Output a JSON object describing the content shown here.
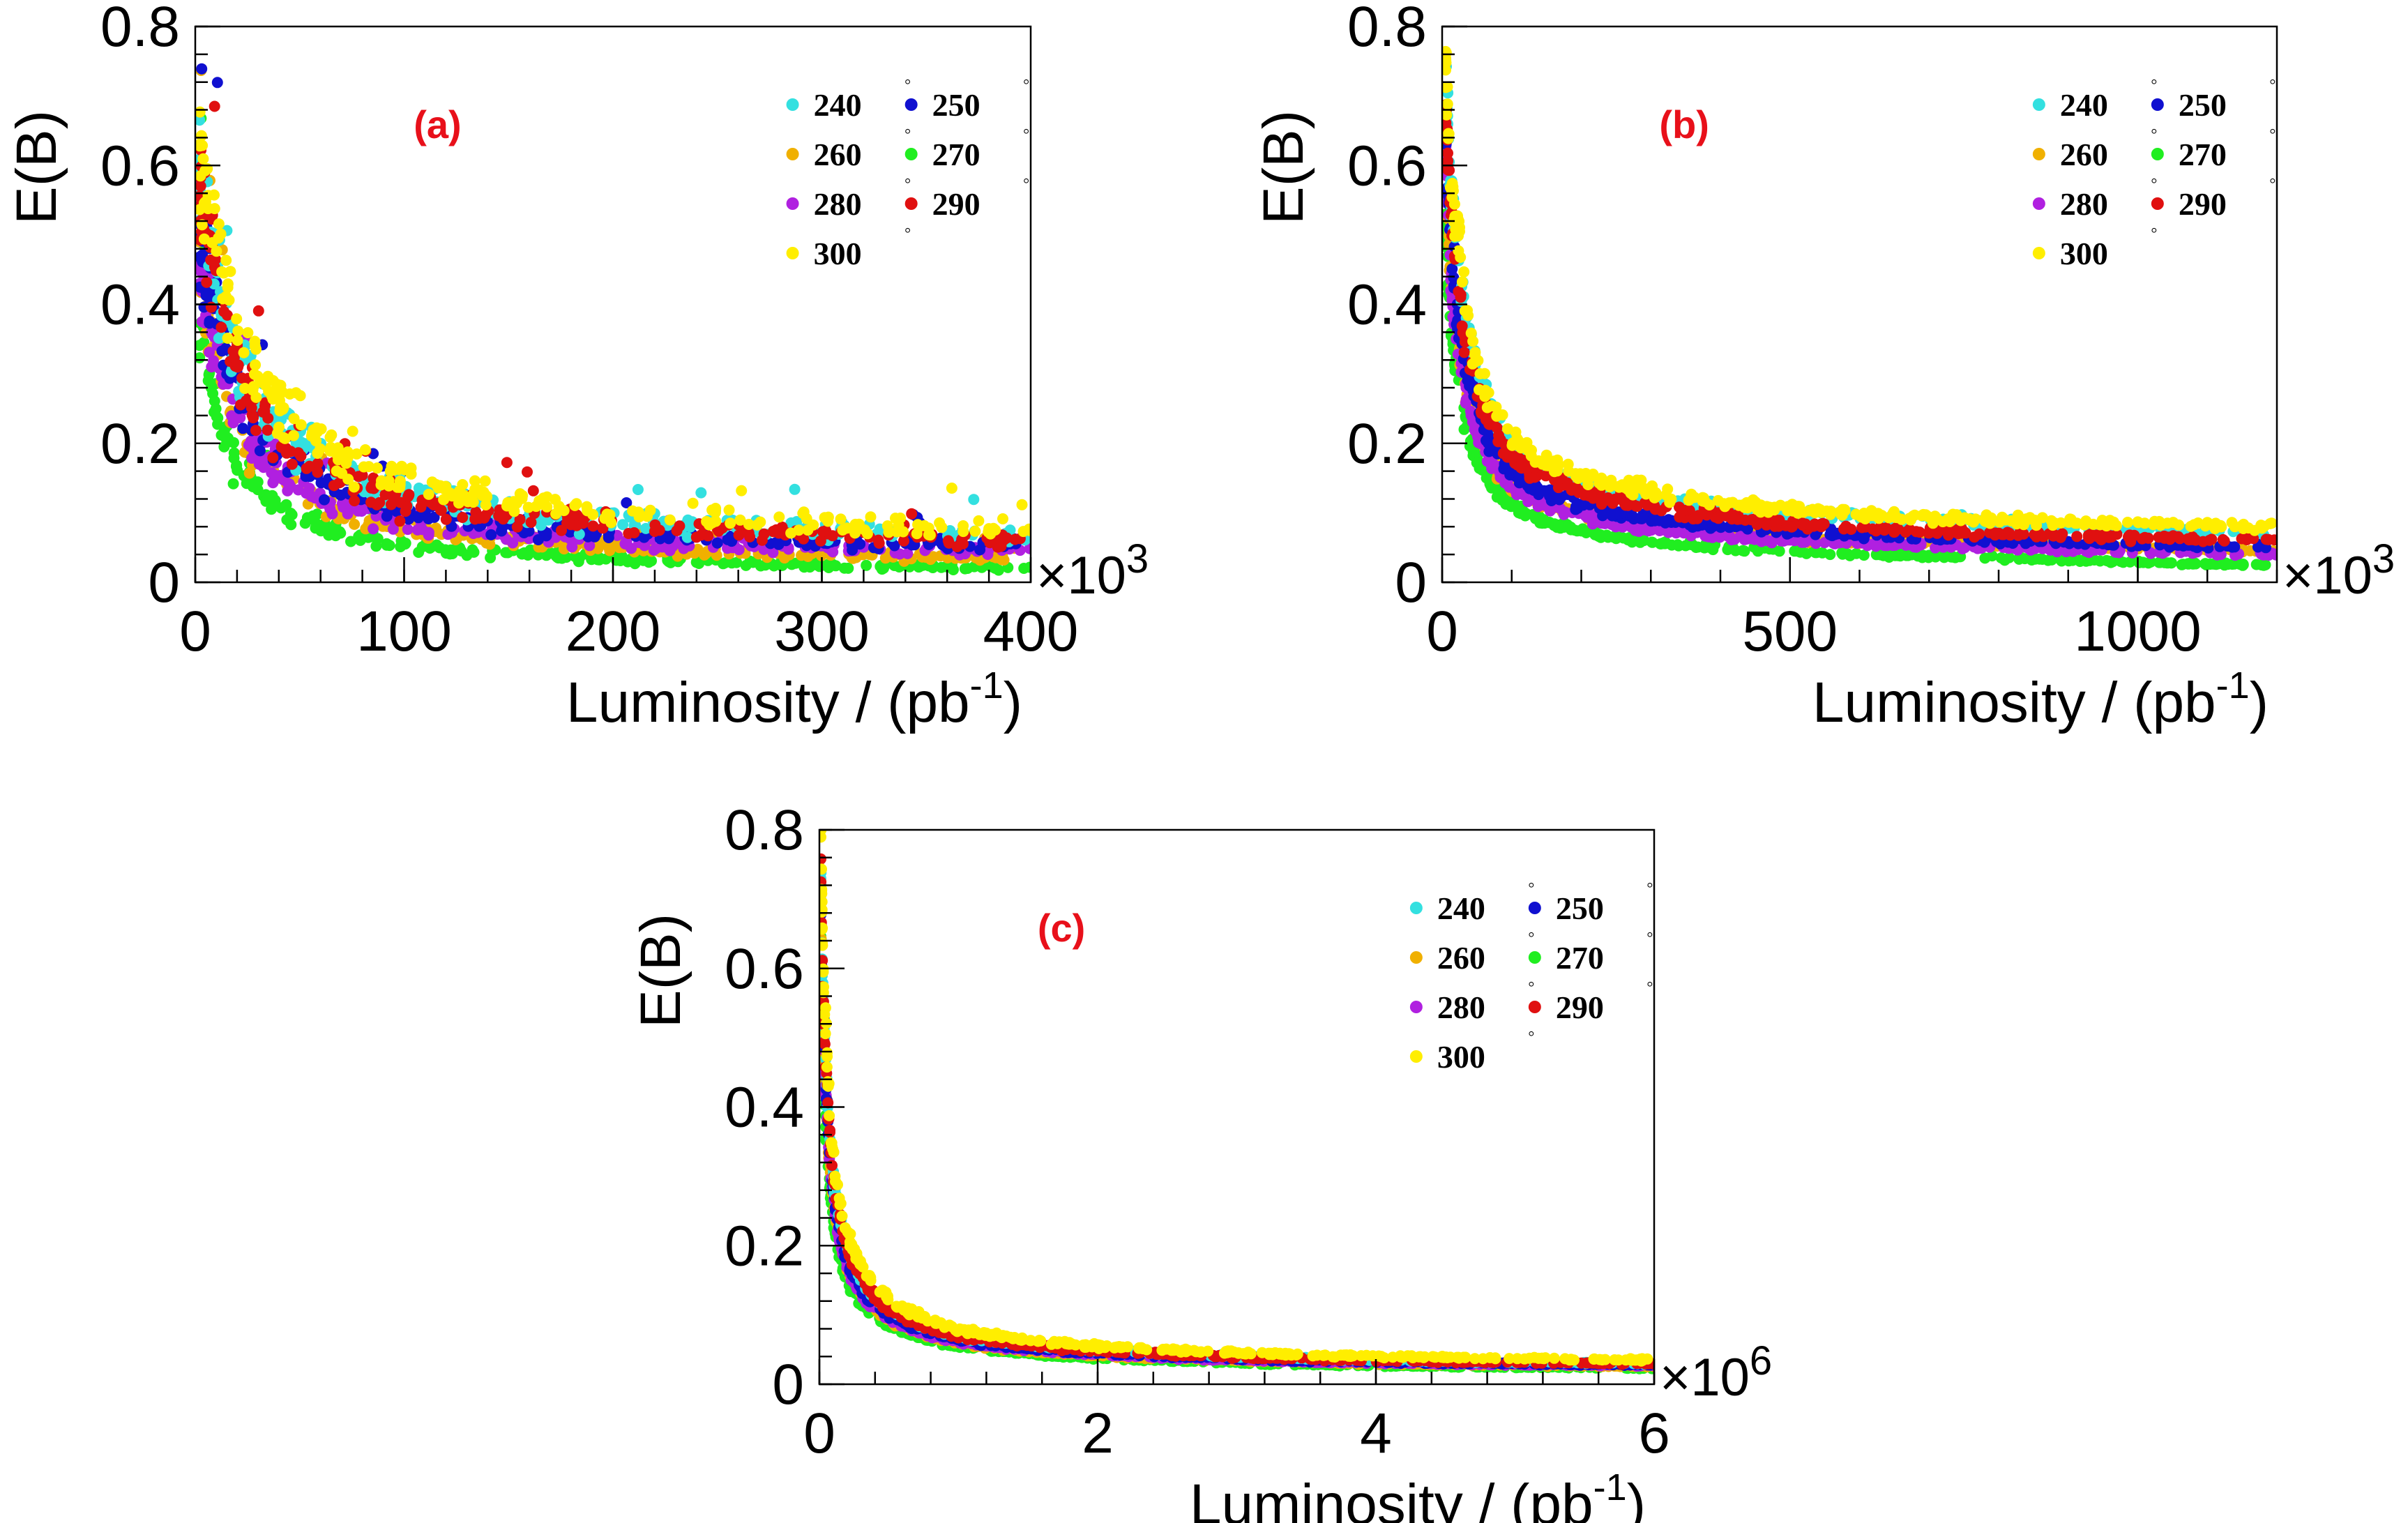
{
  "chart_data": [
    {
      "type": "scatter",
      "panel_label": "(a)",
      "xlabel": "Luminosity / (pb",
      "xlabel_sup": "-1",
      "xlabel_end": ")",
      "ylabel": "E(B)",
      "x_multiplier": "×10",
      "x_multiplier_exp": "3",
      "xlim": [
        0,
        400
      ],
      "ylim": [
        0,
        0.8
      ],
      "xticks": [
        0,
        100,
        200,
        300,
        400
      ],
      "xtick_labels": [
        "0",
        "100",
        "200",
        "300",
        "400"
      ],
      "yticks": [
        0,
        0.2,
        0.4,
        0.6,
        0.8
      ],
      "ytick_labels": [
        "0",
        "0.2",
        "0.4",
        "0.6",
        "0.8"
      ],
      "legend_position": "top-right",
      "series": [
        {
          "name": "240",
          "color": "#33e0e0",
          "x": [
            2,
            10,
            25,
            50,
            100,
            200,
            300,
            400
          ],
          "y": [
            0.6,
            0.45,
            0.3,
            0.2,
            0.13,
            0.09,
            0.075,
            0.065
          ]
        },
        {
          "name": "250",
          "color": "#1010d0",
          "x": [
            2,
            10,
            25,
            50,
            100,
            200,
            300,
            400
          ],
          "y": [
            0.55,
            0.4,
            0.26,
            0.17,
            0.1,
            0.07,
            0.06,
            0.055
          ]
        },
        {
          "name": "260",
          "color": "#f0b000",
          "x": [
            2,
            10,
            25,
            50,
            100,
            200,
            300,
            400
          ],
          "y": [
            0.5,
            0.33,
            0.2,
            0.13,
            0.08,
            0.05,
            0.04,
            0.035
          ]
        },
        {
          "name": "270",
          "color": "#20ee20",
          "x": [
            2,
            10,
            25,
            50,
            100,
            200,
            300,
            400
          ],
          "y": [
            0.4,
            0.26,
            0.15,
            0.09,
            0.055,
            0.035,
            0.025,
            0.02
          ]
        },
        {
          "name": "280",
          "color": "#b020e0",
          "x": [
            2,
            10,
            25,
            50,
            100,
            200,
            300,
            400
          ],
          "y": [
            0.5,
            0.36,
            0.22,
            0.14,
            0.085,
            0.06,
            0.05,
            0.045
          ]
        },
        {
          "name": "290",
          "color": "#e01010",
          "x": [
            2,
            10,
            25,
            50,
            100,
            200,
            300,
            400
          ],
          "y": [
            0.6,
            0.45,
            0.28,
            0.18,
            0.12,
            0.085,
            0.07,
            0.06
          ]
        },
        {
          "name": "300",
          "color": "#ffee00",
          "x": [
            2,
            10,
            25,
            50,
            100,
            200,
            300,
            400
          ],
          "y": [
            0.65,
            0.5,
            0.34,
            0.23,
            0.15,
            0.1,
            0.085,
            0.075
          ]
        }
      ]
    },
    {
      "type": "scatter",
      "panel_label": "(b)",
      "xlabel": "Luminosity / (pb",
      "xlabel_sup": "-1",
      "xlabel_end": ")",
      "ylabel": "E(B)",
      "x_multiplier": "×10",
      "x_multiplier_exp": "3",
      "xlim": [
        0,
        1200
      ],
      "ylim": [
        0,
        0.8
      ],
      "xticks": [
        0,
        500,
        1000
      ],
      "xtick_labels": [
        "0",
        "500",
        "1000"
      ],
      "yticks": [
        0,
        0.2,
        0.4,
        0.6,
        0.8
      ],
      "ytick_labels": [
        "0",
        "0.2",
        "0.4",
        "0.6",
        "0.8"
      ],
      "legend_position": "top-right",
      "series": [
        {
          "name": "240",
          "color": "#33e0e0",
          "x": [
            5,
            25,
            50,
            100,
            250,
            500,
            800,
            1200
          ],
          "y": [
            0.75,
            0.45,
            0.3,
            0.2,
            0.13,
            0.1,
            0.085,
            0.07
          ]
        },
        {
          "name": "250",
          "color": "#1010d0",
          "x": [
            5,
            25,
            50,
            100,
            250,
            500,
            800,
            1200
          ],
          "y": [
            0.7,
            0.38,
            0.26,
            0.16,
            0.1,
            0.075,
            0.06,
            0.05
          ]
        },
        {
          "name": "260",
          "color": "#f0b000",
          "x": [
            5,
            25,
            50,
            100,
            250,
            500,
            800,
            1200
          ],
          "y": [
            0.65,
            0.34,
            0.22,
            0.14,
            0.09,
            0.065,
            0.055,
            0.045
          ]
        },
        {
          "name": "270",
          "color": "#20ee20",
          "x": [
            5,
            25,
            50,
            100,
            250,
            500,
            800,
            1200
          ],
          "y": [
            0.55,
            0.28,
            0.18,
            0.11,
            0.065,
            0.045,
            0.035,
            0.025
          ]
        },
        {
          "name": "280",
          "color": "#b020e0",
          "x": [
            5,
            25,
            50,
            100,
            250,
            500,
            800,
            1200
          ],
          "y": [
            0.65,
            0.33,
            0.22,
            0.14,
            0.085,
            0.06,
            0.05,
            0.04
          ]
        },
        {
          "name": "290",
          "color": "#e01010",
          "x": [
            5,
            25,
            50,
            100,
            250,
            500,
            800,
            1200
          ],
          "y": [
            0.72,
            0.42,
            0.28,
            0.18,
            0.12,
            0.085,
            0.07,
            0.06
          ]
        },
        {
          "name": "300",
          "color": "#ffee00",
          "x": [
            5,
            25,
            50,
            100,
            250,
            500,
            800,
            1200
          ],
          "y": [
            0.78,
            0.48,
            0.32,
            0.21,
            0.14,
            0.105,
            0.09,
            0.08
          ]
        }
      ]
    },
    {
      "type": "scatter",
      "panel_label": "(c)",
      "xlabel": "Luminosity / (pb",
      "xlabel_sup": "-1",
      "xlabel_end": ")",
      "ylabel": "E(B)",
      "x_multiplier": "×10",
      "x_multiplier_exp": "6",
      "xlim": [
        0,
        6
      ],
      "ylim": [
        0,
        0.8
      ],
      "xticks": [
        0,
        2,
        4,
        6
      ],
      "xtick_labels": [
        "0",
        "2",
        "4",
        "6"
      ],
      "yticks": [
        0,
        0.2,
        0.4,
        0.6,
        0.8
      ],
      "ytick_labels": [
        "0",
        "0.2",
        "0.4",
        "0.6",
        "0.8"
      ],
      "legend_position": "top-right",
      "series": [
        {
          "name": "240",
          "color": "#33e0e0",
          "x": [
            0.01,
            0.05,
            0.1,
            0.2,
            0.5,
            1,
            2,
            4,
            6
          ],
          "y": [
            0.75,
            0.45,
            0.3,
            0.2,
            0.11,
            0.07,
            0.05,
            0.035,
            0.03
          ]
        },
        {
          "name": "250",
          "color": "#1010d0",
          "x": [
            0.01,
            0.05,
            0.1,
            0.2,
            0.5,
            1,
            2,
            4,
            6
          ],
          "y": [
            0.7,
            0.42,
            0.28,
            0.18,
            0.1,
            0.065,
            0.045,
            0.032,
            0.028
          ]
        },
        {
          "name": "260",
          "color": "#f0b000",
          "x": [
            0.01,
            0.05,
            0.1,
            0.2,
            0.5,
            1,
            2,
            4,
            6
          ],
          "y": [
            0.68,
            0.4,
            0.27,
            0.17,
            0.095,
            0.06,
            0.042,
            0.03,
            0.026
          ]
        },
        {
          "name": "270",
          "color": "#20ee20",
          "x": [
            0.01,
            0.05,
            0.1,
            0.2,
            0.5,
            1,
            2,
            4,
            6
          ],
          "y": [
            0.62,
            0.36,
            0.24,
            0.15,
            0.085,
            0.055,
            0.038,
            0.027,
            0.023
          ]
        },
        {
          "name": "280",
          "color": "#b020e0",
          "x": [
            0.01,
            0.05,
            0.1,
            0.2,
            0.5,
            1,
            2,
            4,
            6
          ],
          "y": [
            0.7,
            0.41,
            0.27,
            0.17,
            0.095,
            0.062,
            0.043,
            0.031,
            0.027
          ]
        },
        {
          "name": "290",
          "color": "#e01010",
          "x": [
            0.01,
            0.05,
            0.1,
            0.2,
            0.5,
            1,
            2,
            4,
            6
          ],
          "y": [
            0.74,
            0.45,
            0.3,
            0.2,
            0.11,
            0.07,
            0.048,
            0.034,
            0.03
          ]
        },
        {
          "name": "300",
          "color": "#ffee00",
          "x": [
            0.01,
            0.05,
            0.1,
            0.2,
            0.5,
            1,
            2,
            4,
            6
          ],
          "y": [
            0.8,
            0.5,
            0.33,
            0.22,
            0.125,
            0.08,
            0.055,
            0.04,
            0.035
          ]
        }
      ]
    }
  ]
}
